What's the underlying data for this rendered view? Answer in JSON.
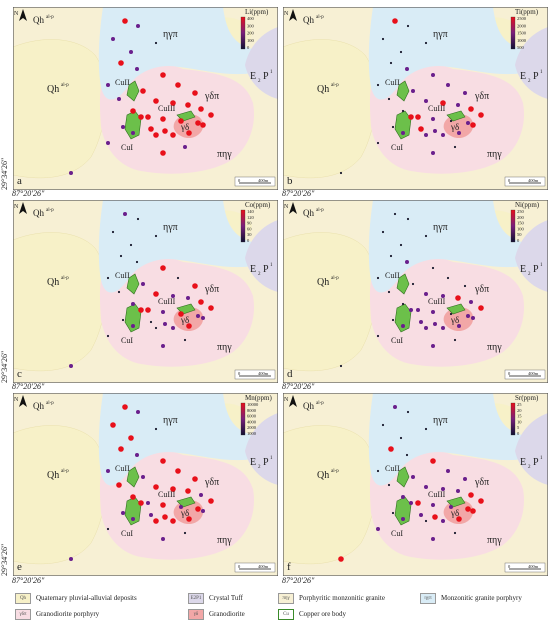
{
  "panels": [
    {
      "letter": "a",
      "element": "Li(ppm)",
      "ticks": [
        "400",
        "300",
        "200",
        "100",
        "0"
      ]
    },
    {
      "letter": "b",
      "element": "Ti(ppm)",
      "ticks": [
        "2500",
        "2000",
        "1500",
        "1000",
        "500"
      ]
    },
    {
      "letter": "c",
      "element": "Co(ppm)",
      "ticks": [
        "140",
        "120",
        "90",
        "60",
        "30",
        "0"
      ]
    },
    {
      "letter": "d",
      "element": "Ni(ppm)",
      "ticks": [
        "250",
        "200",
        "150",
        "100",
        "50",
        "0"
      ]
    },
    {
      "letter": "e",
      "element": "Mn(ppm)",
      "ticks": [
        "10000",
        "8000",
        "6000",
        "4000",
        "2000",
        "1000"
      ]
    },
    {
      "letter": "f",
      "element": "Sr(ppm)",
      "ticks": [
        "25",
        "20",
        "15",
        "10",
        "5",
        "0"
      ]
    }
  ],
  "map": {
    "north_label": "N",
    "unit_labels": {
      "qh": "Qh",
      "qh_sup": "al-p",
      "eta_gamma_pi": "ηγπ",
      "gamma_delta_pi": "γδπ",
      "pi_eta_gamma": "πηγ",
      "e2p": "E",
      "e2p_sub": "2",
      "e2p_p": "P",
      "e2p_sup": "1",
      "gamma_delta": "γδ"
    },
    "ore_labels": {
      "cu1": "CuI",
      "cu2": "CuII",
      "cu3": "CuIII"
    },
    "lon_label": "87°20′26″",
    "lat_label": "29°34′26″",
    "scale_labels": [
      "0",
      "400m"
    ]
  },
  "colors": {
    "quaternary": "#f7f1c8",
    "tuff": "#dcd8ea",
    "porphyritic_granite": "#f7f0d4",
    "monzonitic_porphyry": "#d9ecf6",
    "granodiorite_porphyry": "#f8dde3",
    "granodiorite": "#f2a7a7",
    "ore": "#6cc04a",
    "dot_high": "#e8101a",
    "dot_mid": "#6a1f8c",
    "dot_low": "#1a1a2e"
  },
  "legend": [
    {
      "symbol": "Qh",
      "label": "Quaternary pluvial-alluvial deposits",
      "color": "#f7f1c8"
    },
    {
      "symbol": "E2P1",
      "label": "Crystal Tuff",
      "color": "#dcd8ea"
    },
    {
      "symbol": "πηγ",
      "label": "Porphyritic monzonitic granite",
      "color": "#f7f0d4"
    },
    {
      "symbol": "ηγπ",
      "label": "Monzonitic granite porphyry",
      "color": "#d9ecf6"
    },
    {
      "symbol": "γδπ",
      "label": "Granodiorite porphyry",
      "color": "#f8dde3"
    },
    {
      "symbol": "γδ",
      "label": "Granodiorite",
      "color": "#f2a7a7"
    },
    {
      "symbol": "Cu",
      "label": "Copper ore body",
      "color": "#ffffff"
    }
  ]
}
